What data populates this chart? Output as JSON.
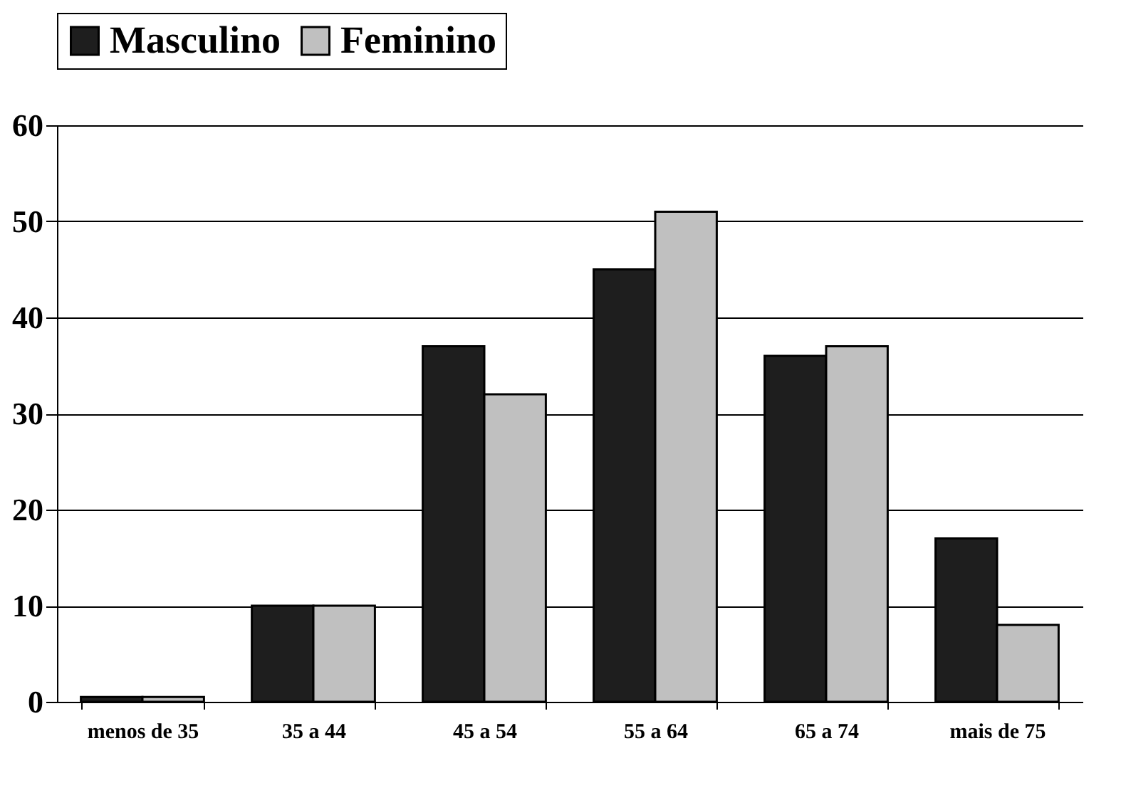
{
  "chart_data": {
    "type": "bar",
    "categories": [
      "menos de 35",
      "35 a 44",
      "45 a 54",
      "55 a 64",
      "65 a 74",
      "mais  de  75"
    ],
    "series": [
      {
        "name": "Masculino",
        "color": "#1e1e1e",
        "values": [
          0.5,
          10,
          37,
          45,
          36,
          17
        ]
      },
      {
        "name": "Feminino",
        "color": "#c0c0c0",
        "values": [
          0.5,
          10,
          32,
          51,
          37,
          8
        ]
      }
    ],
    "ylim": [
      0,
      60
    ],
    "yticks": [
      0,
      10,
      20,
      30,
      40,
      50,
      60
    ],
    "grid": "y",
    "legend": "top"
  }
}
